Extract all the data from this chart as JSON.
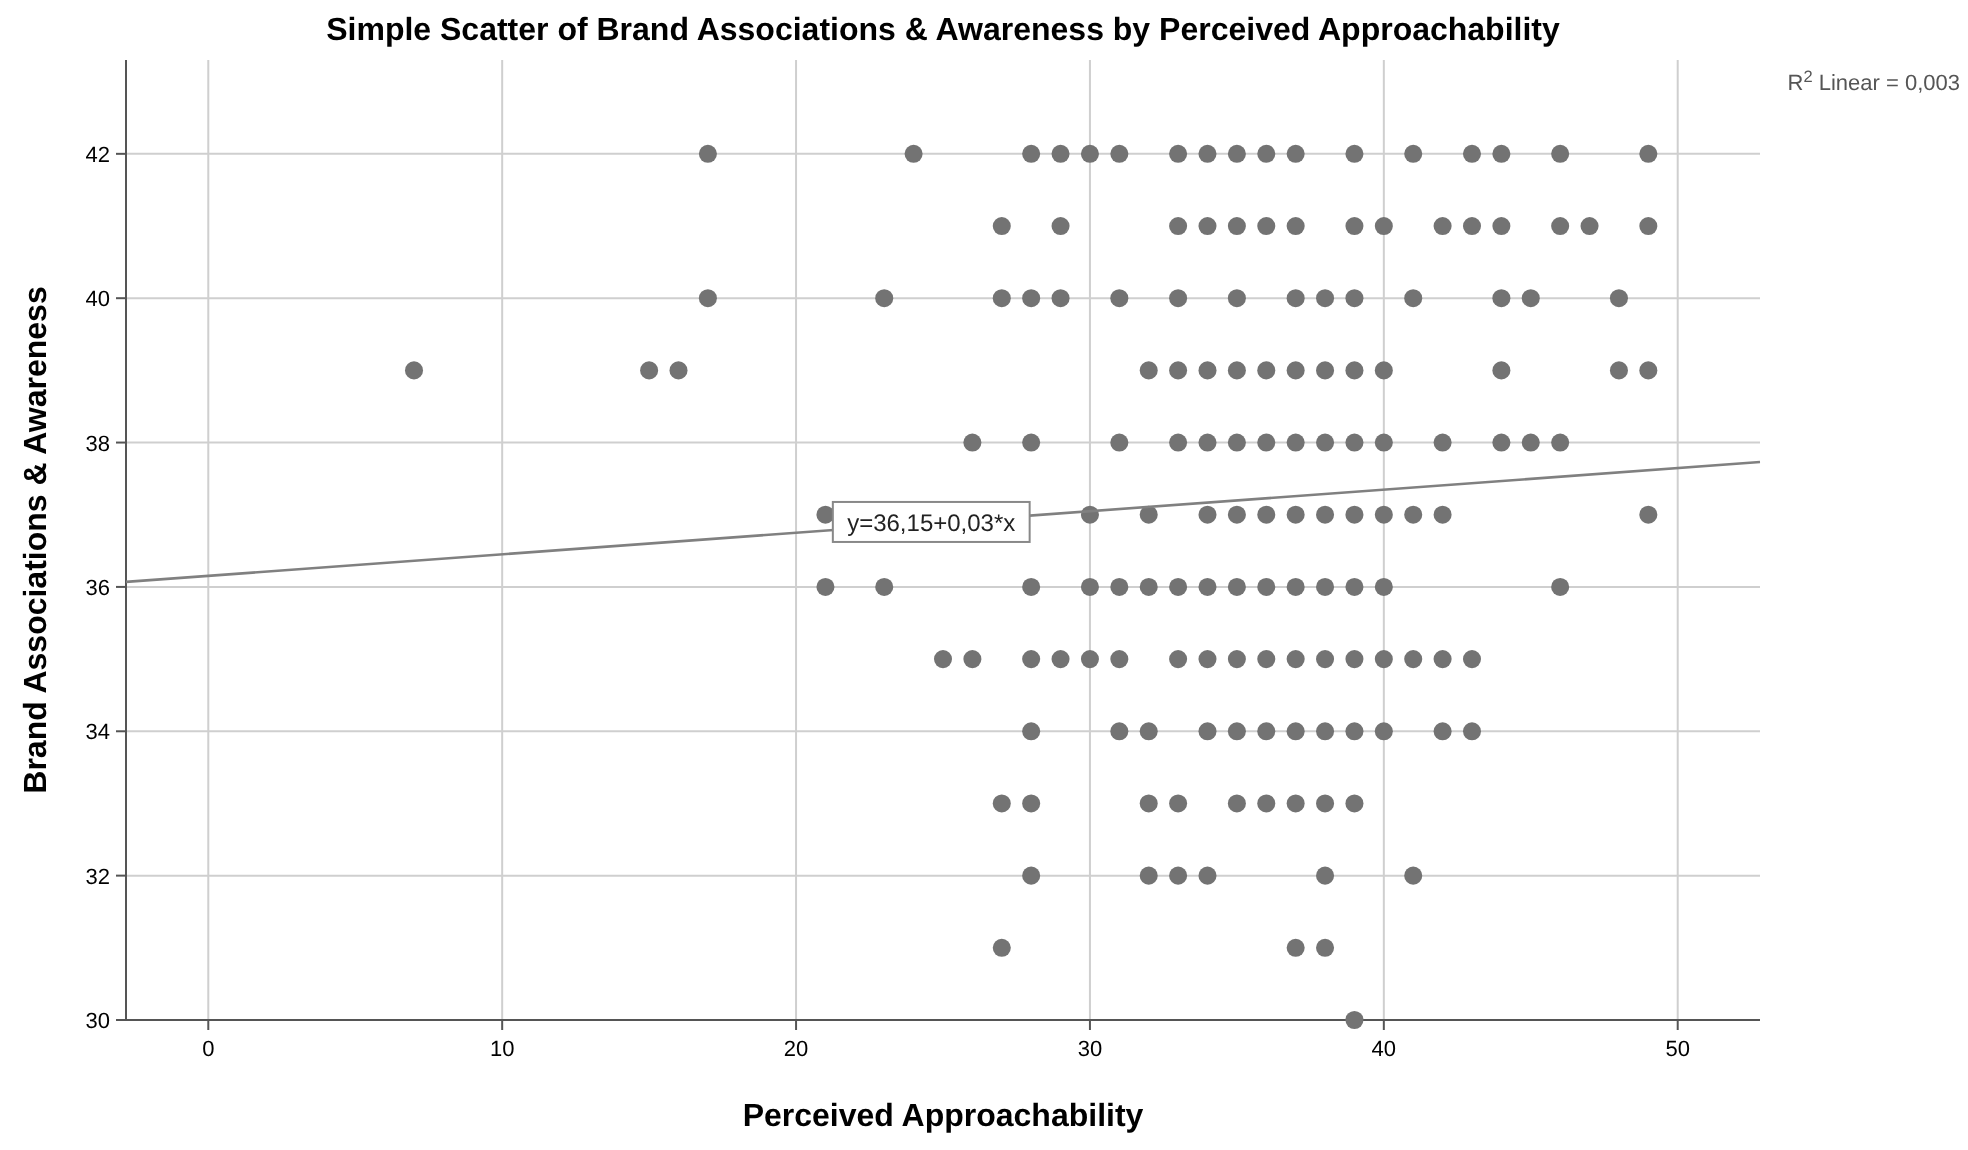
{
  "chart_data": {
    "type": "scatter",
    "title": "Simple Scatter of Brand Associations & Awareness by Perceived Approachability",
    "xlabel": "Perceived Approachability",
    "ylabel": "Brand Associations & Awareness",
    "xlim": [
      -2.8,
      52.8
    ],
    "ylim": [
      30,
      43.3
    ],
    "xticks": [
      0,
      10,
      20,
      30,
      40,
      50
    ],
    "yticks": [
      30,
      32,
      34,
      36,
      38,
      40,
      42
    ],
    "grid": true,
    "annotations": [
      "R$^{2}$ Linear = 0,003",
      {
        "text": "y=36,15+0,03*x",
        "x": 24.6,
        "y": 36.9
      }
    ],
    "series": [
      {
        "color": "#737373",
        "marker": "circle",
        "x": [
          17,
          24,
          28,
          29,
          30,
          31,
          33,
          34,
          35,
          36,
          37,
          39,
          41,
          43,
          44,
          46,
          49,
          27,
          29,
          33,
          34,
          35,
          36,
          37,
          39,
          40,
          42,
          43,
          44,
          46,
          47,
          49,
          17,
          23,
          27,
          28,
          29,
          31,
          33,
          35,
          37,
          38,
          39,
          41,
          44,
          45,
          48,
          7,
          15,
          16,
          32,
          33,
          34,
          35,
          36,
          37,
          38,
          39,
          40,
          44,
          48,
          49,
          26,
          28,
          31,
          33,
          34,
          35,
          36,
          37,
          38,
          39,
          40,
          42,
          44,
          45,
          46,
          21,
          30,
          32,
          34,
          35,
          36,
          37,
          38,
          39,
          40,
          41,
          42,
          49,
          21,
          23,
          28,
          30,
          31,
          32,
          33,
          34,
          35,
          36,
          37,
          38,
          39,
          40,
          46,
          25,
          26,
          28,
          29,
          30,
          31,
          33,
          34,
          35,
          36,
          37,
          38,
          39,
          40,
          41,
          42,
          43,
          28,
          31,
          32,
          34,
          35,
          36,
          37,
          38,
          39,
          40,
          42,
          43,
          27,
          28,
          32,
          33,
          35,
          36,
          37,
          38,
          39,
          28,
          32,
          33,
          34,
          38,
          41,
          27,
          37,
          38,
          39
        ],
        "values": [
          42,
          42,
          42,
          42,
          42,
          42,
          42,
          42,
          42,
          42,
          42,
          42,
          42,
          42,
          42,
          42,
          42,
          41,
          41,
          41,
          41,
          41,
          41,
          41,
          41,
          41,
          41,
          41,
          41,
          41,
          41,
          41,
          40,
          40,
          40,
          40,
          40,
          40,
          40,
          40,
          40,
          40,
          40,
          40,
          40,
          40,
          40,
          39,
          39,
          39,
          39,
          39,
          39,
          39,
          39,
          39,
          39,
          39,
          39,
          39,
          39,
          39,
          38,
          38,
          38,
          38,
          38,
          38,
          38,
          38,
          38,
          38,
          38,
          38,
          38,
          38,
          38,
          37,
          37,
          37,
          37,
          37,
          37,
          37,
          37,
          37,
          37,
          37,
          37,
          37,
          36,
          36,
          36,
          36,
          36,
          36,
          36,
          36,
          36,
          36,
          36,
          36,
          36,
          36,
          36,
          35,
          35,
          35,
          35,
          35,
          35,
          35,
          35,
          35,
          35,
          35,
          35,
          35,
          35,
          35,
          35,
          35,
          34,
          34,
          34,
          34,
          34,
          34,
          34,
          34,
          34,
          34,
          34,
          34,
          33,
          33,
          33,
          33,
          33,
          33,
          33,
          33,
          33,
          32,
          32,
          32,
          32,
          32,
          32,
          31,
          31,
          31,
          30
        ]
      },
      {
        "type": "line",
        "color": "#808080",
        "x": [
          -2.8,
          52.8
        ],
        "values": [
          36.07,
          37.73
        ]
      }
    ]
  }
}
